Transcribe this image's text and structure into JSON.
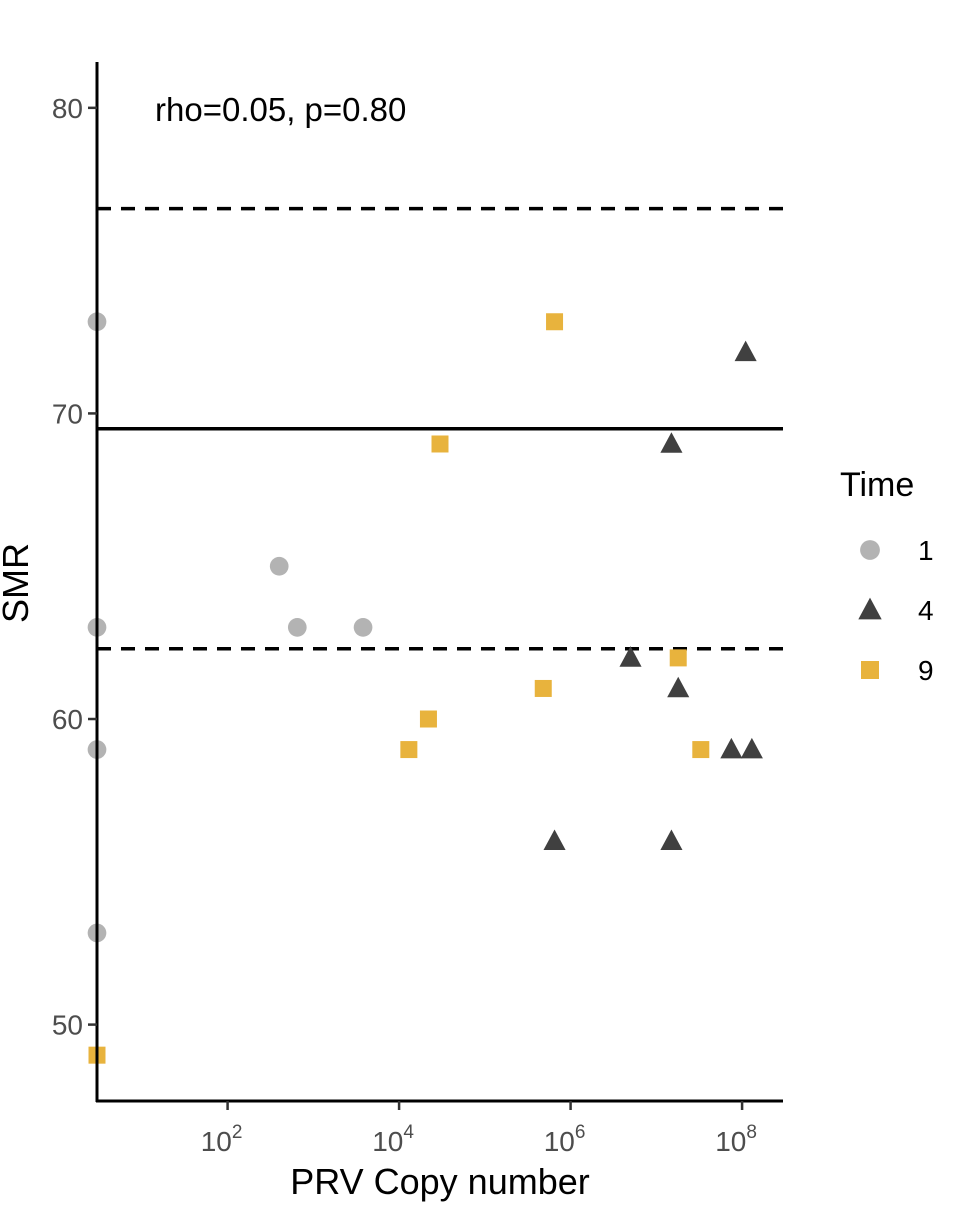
{
  "chart_data": {
    "type": "scatter",
    "title": "",
    "xlabel": "PRV Copy number",
    "ylabel": "SMR",
    "x_scale": "log10",
    "xlim": [
      3,
      300000000
    ],
    "ylim": [
      47.5,
      81.5
    ],
    "x_ticks": [
      {
        "value": 100,
        "base": "10",
        "exp": "2"
      },
      {
        "value": 10000,
        "base": "10",
        "exp": "4"
      },
      {
        "value": 1000000,
        "base": "10",
        "exp": "6"
      },
      {
        "value": 100000000,
        "base": "10",
        "exp": "8"
      }
    ],
    "y_ticks": [
      {
        "value": 50,
        "label": "50"
      },
      {
        "value": 60,
        "label": "60"
      },
      {
        "value": 70,
        "label": "70"
      },
      {
        "value": 80,
        "label": "80"
      }
    ],
    "grid": false,
    "annotation": "rho=0.05, p=0.80",
    "reference_lines": [
      {
        "y": 69.5,
        "style": "solid",
        "color": "#000000"
      },
      {
        "y": 76.7,
        "style": "dashed",
        "color": "#000000"
      },
      {
        "y": 62.3,
        "style": "dashed",
        "color": "#000000"
      }
    ],
    "legend": {
      "title": "Time",
      "position": "right"
    },
    "series": [
      {
        "name": "1",
        "shape": "circle",
        "color": "#b3b3b3",
        "points": [
          {
            "x": 3,
            "y": 73
          },
          {
            "x": 3,
            "y": 63
          },
          {
            "x": 3,
            "y": 59
          },
          {
            "x": 3,
            "y": 53
          },
          {
            "x": 400,
            "y": 65
          },
          {
            "x": 650,
            "y": 63
          },
          {
            "x": 3800,
            "y": 63
          }
        ]
      },
      {
        "name": "4",
        "shape": "triangle",
        "color": "#404040",
        "points": [
          {
            "x": 110000000,
            "y": 72
          },
          {
            "x": 15000000,
            "y": 69
          },
          {
            "x": 5000000,
            "y": 62
          },
          {
            "x": 18000000,
            "y": 61
          },
          {
            "x": 75000000,
            "y": 59
          },
          {
            "x": 130000000,
            "y": 59
          },
          {
            "x": 650000,
            "y": 56
          },
          {
            "x": 15000000,
            "y": 56
          }
        ]
      },
      {
        "name": "9",
        "shape": "square",
        "color": "#e8b33d",
        "points": [
          {
            "x": 650000,
            "y": 73
          },
          {
            "x": 30000,
            "y": 69
          },
          {
            "x": 18000000,
            "y": 62
          },
          {
            "x": 480000,
            "y": 61
          },
          {
            "x": 22000,
            "y": 60
          },
          {
            "x": 13000,
            "y": 59
          },
          {
            "x": 33000000,
            "y": 59
          },
          {
            "x": 3,
            "y": 49
          }
        ]
      }
    ]
  }
}
